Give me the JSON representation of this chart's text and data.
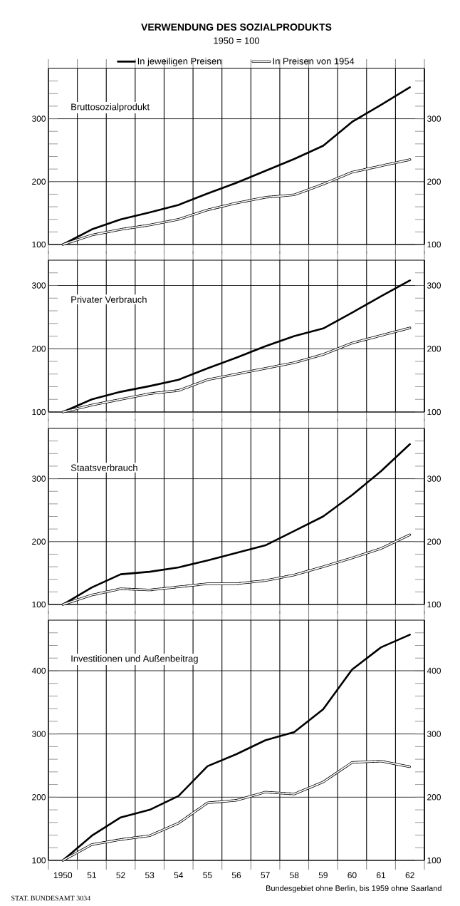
{
  "chart_data": [
    {
      "type": "line",
      "title": "VERWENDUNG DES SOZIALPRODUKTS",
      "subtitle": "1950 = 100",
      "annotations": [
        "Bruttosozialprodukt"
      ],
      "legend": "top",
      "grid": true,
      "tick_labels": "y",
      "categories": [
        "1950",
        "51",
        "52",
        "53",
        "54",
        "55",
        "56",
        "57",
        "58",
        "59",
        "60",
        "61",
        "62"
      ],
      "ylim": [
        100,
        380
      ],
      "yticks": [
        100,
        {
          "value": 120,
          "label": null
        },
        {
          "value": 140,
          "label": null
        },
        {
          "value": 160,
          "label": null
        },
        {
          "value": 180,
          "label": null
        },
        200,
        {
          "value": 220,
          "label": null
        },
        {
          "value": 240,
          "label": null
        },
        {
          "value": 260,
          "label": null
        },
        {
          "value": 280,
          "label": null
        },
        300,
        {
          "value": 320,
          "label": null
        },
        {
          "value": 340,
          "label": null
        },
        {
          "value": 360,
          "label": null
        }
      ],
      "y2lim": [
        100,
        380
      ],
      "y2ticks": [
        100,
        {
          "value": 120,
          "label": null
        },
        {
          "value": 140,
          "label": null
        },
        {
          "value": 160,
          "label": null
        },
        {
          "value": 180,
          "label": null
        },
        200,
        {
          "value": 220,
          "label": null
        },
        {
          "value": 240,
          "label": null
        },
        {
          "value": 260,
          "label": null
        },
        {
          "value": 280,
          "label": null
        },
        300,
        {
          "value": 320,
          "label": null
        },
        {
          "value": 340,
          "label": null
        },
        {
          "value": 360,
          "label": null
        }
      ],
      "series": [
        {
          "name": "In jeweiligen Preisen",
          "color": "#000000",
          "line_style": "solid",
          "values": [
            100,
            124,
            140,
            151,
            163,
            181,
            198,
            217,
            236,
            257,
            295,
            322,
            350
          ]
        },
        {
          "name": "In Preisen von 1954",
          "color": "#000000",
          "line_style": "dashed",
          "values": [
            100,
            115,
            124,
            131,
            140,
            155,
            166,
            175,
            179,
            196,
            215,
            225,
            235
          ]
        }
      ]
    },
    {
      "type": "line",
      "annotations": [
        "Privater Verbrauch"
      ],
      "grid": true,
      "tick_labels": "y",
      "categories": [
        "1950",
        "51",
        "52",
        "53",
        "54",
        "55",
        "56",
        "57",
        "58",
        "59",
        "60",
        "61",
        "62"
      ],
      "ylim": [
        100,
        340
      ],
      "yticks": [
        100,
        {
          "value": 120,
          "label": null
        },
        {
          "value": 140,
          "label": null
        },
        {
          "value": 160,
          "label": null
        },
        {
          "value": 180,
          "label": null
        },
        200,
        {
          "value": 220,
          "label": null
        },
        {
          "value": 240,
          "label": null
        },
        {
          "value": 260,
          "label": null
        },
        {
          "value": 280,
          "label": null
        },
        300,
        {
          "value": 320,
          "label": null
        }
      ],
      "y2lim": [
        100,
        340
      ],
      "y2ticks": [
        100,
        {
          "value": 120,
          "label": null
        },
        {
          "value": 140,
          "label": null
        },
        {
          "value": 160,
          "label": null
        },
        {
          "value": 180,
          "label": null
        },
        200,
        {
          "value": 220,
          "label": null
        },
        {
          "value": 240,
          "label": null
        },
        {
          "value": 260,
          "label": null
        },
        {
          "value": 280,
          "label": null
        },
        300,
        {
          "value": 320,
          "label": null
        }
      ],
      "series": [
        {
          "color": "#000000",
          "line_style": "solid",
          "values": [
            100,
            120,
            132,
            141,
            151,
            169,
            186,
            204,
            220,
            232,
            257,
            283,
            308
          ]
        },
        {
          "color": "#000000",
          "line_style": "dashed",
          "values": [
            100,
            111,
            120,
            129,
            134,
            151,
            160,
            169,
            178,
            191,
            209,
            221,
            233
          ]
        }
      ]
    },
    {
      "type": "line",
      "annotations": [
        "Staatsverbrauch"
      ],
      "grid": true,
      "tick_labels": "y",
      "categories": [
        "1950",
        "51",
        "52",
        "53",
        "54",
        "55",
        "56",
        "57",
        "58",
        "59",
        "60",
        "61",
        "62"
      ],
      "ylim": [
        100,
        380
      ],
      "yticks": [
        100,
        {
          "value": 120,
          "label": null
        },
        {
          "value": 140,
          "label": null
        },
        {
          "value": 160,
          "label": null
        },
        {
          "value": 180,
          "label": null
        },
        200,
        {
          "value": 220,
          "label": null
        },
        {
          "value": 240,
          "label": null
        },
        {
          "value": 260,
          "label": null
        },
        {
          "value": 280,
          "label": null
        },
        300,
        {
          "value": 320,
          "label": null
        },
        {
          "value": 340,
          "label": null
        },
        {
          "value": 360,
          "label": null
        }
      ],
      "y2lim": [
        100,
        380
      ],
      "y2ticks": [
        100,
        {
          "value": 120,
          "label": null
        },
        {
          "value": 140,
          "label": null
        },
        {
          "value": 160,
          "label": null
        },
        {
          "value": 180,
          "label": null
        },
        200,
        {
          "value": 220,
          "label": null
        },
        {
          "value": 240,
          "label": null
        },
        {
          "value": 260,
          "label": null
        },
        {
          "value": 280,
          "label": null
        },
        300,
        {
          "value": 320,
          "label": null
        },
        {
          "value": 340,
          "label": null
        },
        {
          "value": 360,
          "label": null
        }
      ],
      "series": [
        {
          "color": "#000000",
          "line_style": "solid",
          "values": [
            100,
            127,
            148,
            152,
            159,
            170,
            182,
            194,
            217,
            240,
            274,
            312,
            355
          ]
        },
        {
          "color": "#000000",
          "line_style": "dashed",
          "values": [
            100,
            115,
            125,
            123,
            128,
            133,
            133,
            138,
            147,
            160,
            174,
            189,
            211
          ]
        }
      ]
    },
    {
      "type": "line",
      "annotations": [
        "Investitionen und Außenbeitrag",
        "Bundesgebiet ohne Berlin, bis 1959 ohne Saarland",
        "STAT. BUNDESAMT 3034"
      ],
      "grid": true,
      "categories": [
        "1950",
        "51",
        "52",
        "53",
        "54",
        "55",
        "56",
        "57",
        "58",
        "59",
        "60",
        "61",
        "62"
      ],
      "ylim": [
        100,
        480
      ],
      "yticks": [
        100,
        {
          "value": 120,
          "label": null
        },
        {
          "value": 140,
          "label": null
        },
        {
          "value": 160,
          "label": null
        },
        {
          "value": 180,
          "label": null
        },
        200,
        {
          "value": 220,
          "label": null
        },
        {
          "value": 240,
          "label": null
        },
        {
          "value": 260,
          "label": null
        },
        {
          "value": 280,
          "label": null
        },
        300,
        {
          "value": 320,
          "label": null
        },
        {
          "value": 340,
          "label": null
        },
        {
          "value": 360,
          "label": null
        },
        {
          "value": 380,
          "label": null
        },
        400,
        {
          "value": 420,
          "label": null
        },
        {
          "value": 440,
          "label": null
        },
        {
          "value": 460,
          "label": null
        }
      ],
      "y2lim": [
        100,
        480
      ],
      "y2ticks": [
        100,
        {
          "value": 120,
          "label": null
        },
        {
          "value": 140,
          "label": null
        },
        {
          "value": 160,
          "label": null
        },
        {
          "value": 180,
          "label": null
        },
        200,
        {
          "value": 220,
          "label": null
        },
        {
          "value": 240,
          "label": null
        },
        {
          "value": 260,
          "label": null
        },
        {
          "value": 280,
          "label": null
        },
        300,
        {
          "value": 320,
          "label": null
        },
        {
          "value": 340,
          "label": null
        },
        {
          "value": 360,
          "label": null
        },
        {
          "value": 380,
          "label": null
        },
        400,
        {
          "value": 420,
          "label": null
        },
        {
          "value": 440,
          "label": null
        },
        {
          "value": 460,
          "label": null
        }
      ],
      "series": [
        {
          "color": "#000000",
          "line_style": "solid",
          "values": [
            100,
            139,
            168,
            180,
            202,
            249,
            268,
            290,
            303,
            339,
            402,
            437,
            457
          ]
        },
        {
          "color": "#000000",
          "line_style": "dashed",
          "values": [
            100,
            125,
            133,
            139,
            159,
            191,
            195,
            208,
            205,
            224,
            255,
            257,
            248
          ]
        }
      ]
    }
  ]
}
